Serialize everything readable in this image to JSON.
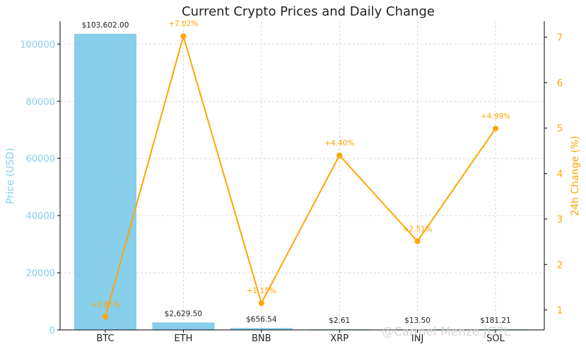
{
  "chart_data": {
    "type": "bar",
    "title": "Current Crypto Prices and Daily Change",
    "categories": [
      "BTC",
      "ETH",
      "BNB",
      "XRP",
      "INJ",
      "SOL"
    ],
    "series": [
      {
        "name": "Price (USD)",
        "type": "bar",
        "axis": "left",
        "values": [
          103602.0,
          2629.5,
          656.54,
          2.61,
          13.5,
          181.21
        ],
        "labels": [
          "$103,602.00",
          "$2,629.50",
          "$656.54",
          "$2.61",
          "$13.50",
          "$181.21"
        ]
      },
      {
        "name": "24h Change (%)",
        "type": "line",
        "axis": "right",
        "values": [
          0.85,
          7.02,
          1.15,
          4.4,
          2.51,
          4.99
        ],
        "labels": [
          "+0.85%",
          "+7.02%",
          "+1.15%",
          "+4.40%",
          "+2.51%",
          "+4.99%"
        ]
      }
    ],
    "ylabel": "Price (USD)",
    "y2label": "24h Change (%)",
    "ylim": [
      0,
      108000
    ],
    "y2lim": [
      0.56,
      7.35
    ],
    "yticks": [
      0,
      20000,
      40000,
      60000,
      80000,
      100000
    ],
    "y2ticks": [
      1,
      2,
      3,
      4,
      5,
      6,
      7
    ],
    "grid": true,
    "colors": {
      "bar": "#87CEEB",
      "line": "#FFA500",
      "left_axis": "#87CEEB",
      "right_axis": "#FFA500"
    }
  },
  "watermark": "@Carmel Menze JG7L"
}
